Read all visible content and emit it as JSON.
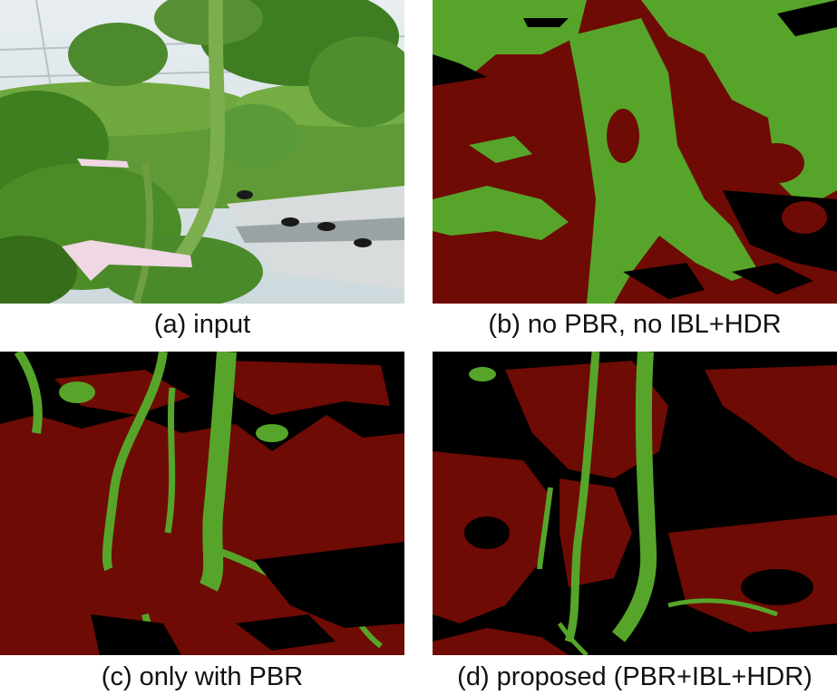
{
  "panels": [
    {
      "id": "a",
      "caption": "(a) input",
      "image": "photo-greenhouse-tomato-plant"
    },
    {
      "id": "b",
      "caption": "(b) no PBR, no IBL+HDR",
      "image": "segmentation-mask"
    },
    {
      "id": "c",
      "caption": "(c) only with PBR",
      "image": "segmentation-mask"
    },
    {
      "id": "d",
      "caption": "(d) proposed (PBR+IBL+HDR)",
      "image": "segmentation-mask"
    }
  ],
  "colors": {
    "plant": "#56a52a",
    "background": "#6e0b04",
    "unlabeled": "#000000",
    "photo_leaf": "#4f8f2a",
    "photo_sky": "#e4ebf0"
  }
}
